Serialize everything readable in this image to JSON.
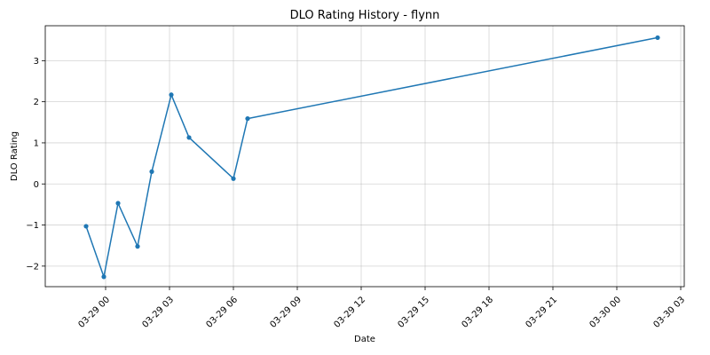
{
  "chart_data": {
    "type": "line",
    "title": "DLO Rating History - flynn",
    "xlabel": "Date",
    "ylabel": "DLO Rating",
    "x_type": "datetime",
    "xlim": [
      "2024-03-28 21:10",
      "2024-03-30 03:10"
    ],
    "ylim": [
      -2.5,
      3.85
    ],
    "x_ticks": [
      {
        "value": "2024-03-29 00:00",
        "label": "03-29 00"
      },
      {
        "value": "2024-03-29 03:00",
        "label": "03-29 03"
      },
      {
        "value": "2024-03-29 06:00",
        "label": "03-29 06"
      },
      {
        "value": "2024-03-29 09:00",
        "label": "03-29 09"
      },
      {
        "value": "2024-03-29 12:00",
        "label": "03-29 12"
      },
      {
        "value": "2024-03-29 15:00",
        "label": "03-29 15"
      },
      {
        "value": "2024-03-29 18:00",
        "label": "03-29 18"
      },
      {
        "value": "2024-03-29 21:00",
        "label": "03-29 21"
      },
      {
        "value": "2024-03-30 00:00",
        "label": "03-30 00"
      },
      {
        "value": "2024-03-30 03:00",
        "label": "03-30 03"
      }
    ],
    "y_ticks": [
      {
        "value": -2,
        "label": "−2"
      },
      {
        "value": -1,
        "label": "−1"
      },
      {
        "value": 0,
        "label": "0"
      },
      {
        "value": 1,
        "label": "1"
      },
      {
        "value": 2,
        "label": "2"
      },
      {
        "value": 3,
        "label": "3"
      }
    ],
    "grid": true,
    "colors": {
      "line": "#1f77b4",
      "grid": "#b0b0b0",
      "axis": "#000000"
    },
    "series": [
      {
        "points": [
          {
            "x": "2024-03-28 23:05",
            "y": -1.03
          },
          {
            "x": "2024-03-28 23:55",
            "y": -2.26
          },
          {
            "x": "2024-03-29 00:35",
            "y": -0.47
          },
          {
            "x": "2024-03-29 01:30",
            "y": -1.52
          },
          {
            "x": "2024-03-29 02:10",
            "y": 0.3
          },
          {
            "x": "2024-03-29 03:05",
            "y": 2.17
          },
          {
            "x": "2024-03-29 03:55",
            "y": 1.13
          },
          {
            "x": "2024-03-29 06:00",
            "y": 0.13
          },
          {
            "x": "2024-03-29 06:40",
            "y": 1.59
          },
          {
            "x": "2024-03-30 01:55",
            "y": 3.56
          }
        ]
      }
    ]
  }
}
